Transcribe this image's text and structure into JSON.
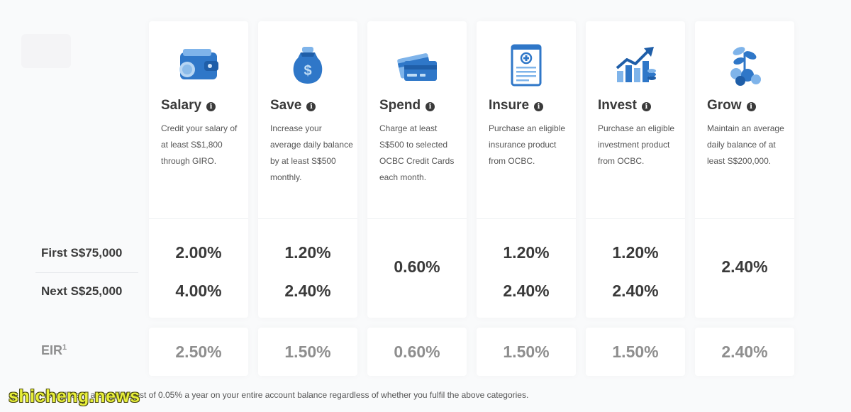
{
  "columns": [
    {
      "title": "Salary",
      "icon": "wallet-icon",
      "desc": "Credit your salary of at least S$1,800 through GIRO.",
      "first": "2.00%",
      "next": "4.00%",
      "single": "",
      "eir": "2.50%"
    },
    {
      "title": "Save",
      "icon": "money-bag-icon",
      "desc": "Increase your average daily balance by at least S$500 monthly.",
      "first": "1.20%",
      "next": "2.40%",
      "single": "",
      "eir": "1.50%"
    },
    {
      "title": "Spend",
      "icon": "credit-cards-icon",
      "desc": "Charge at least S$500 to selected OCBC Credit Cards each month.",
      "first": "",
      "next": "",
      "single": "0.60%",
      "eir": "0.60%"
    },
    {
      "title": "Insure",
      "icon": "insurance-document-icon",
      "desc": "Purchase an eligible insurance product from OCBC.",
      "first": "1.20%",
      "next": "2.40%",
      "single": "",
      "eir": "1.50%"
    },
    {
      "title": "Invest",
      "icon": "growth-chart-icon",
      "desc": "Purchase an eligible investment product from OCBC.",
      "first": "1.20%",
      "next": "2.40%",
      "single": "",
      "eir": "1.50%"
    },
    {
      "title": "Grow",
      "icon": "plant-coins-icon",
      "desc": "Maintain an average daily balance of at least S$200,000.",
      "first": "",
      "next": "",
      "single": "2.40%",
      "eir": "2.40%"
    }
  ],
  "rows": {
    "first_label": "First S$75,000",
    "next_label": "Next S$25,000",
    "eir_label": "EIR",
    "eir_sup": "1"
  },
  "footnote": "Youwill earn a base interest of 0.05% a year on your entire account balance regardless of whether you fulfil the above categories.",
  "watermark": "shicheng.news",
  "colors": {
    "icon_blue": "#2f77c8",
    "icon_light": "#7fb4ea",
    "text_dark": "#3a3a3a",
    "text_muted": "#8e8e8e"
  }
}
